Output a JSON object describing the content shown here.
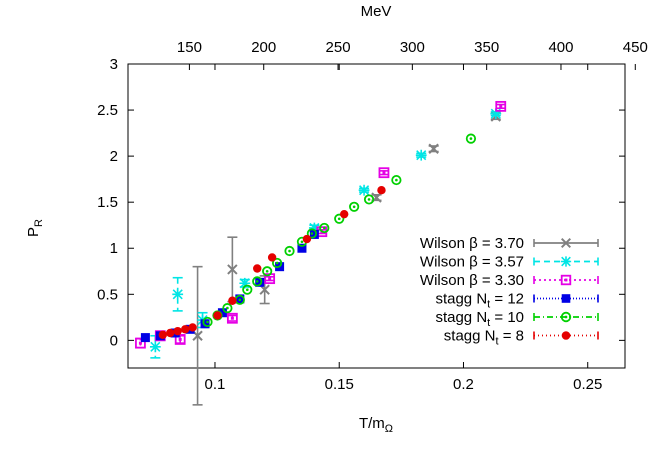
{
  "chart_data": {
    "type": "scatter",
    "xlabel": "T/m",
    "xlabel_sub": "Ω",
    "ylabel": "P",
    "ylabel_sub": "R",
    "top_axis_label": "MeV",
    "xlim": [
      0.065,
      0.265
    ],
    "ylim": [
      -0.3,
      3.0
    ],
    "mev_per_unit": 1672,
    "x_ticks": [
      0.1,
      0.15,
      0.2,
      0.25
    ],
    "x_tick_labels": [
      "0.1",
      "0.15",
      "0.2",
      "0.25"
    ],
    "y_ticks": [
      0,
      0.5,
      1,
      1.5,
      2,
      2.5,
      3
    ],
    "y_tick_labels": [
      "0",
      "0.5",
      "1",
      "1.5",
      "2",
      "2.5",
      "3"
    ],
    "top_ticks": [
      150,
      200,
      250,
      300,
      350,
      400,
      450
    ],
    "top_tick_labels": [
      "150",
      "200",
      "250",
      "300",
      "350",
      "400",
      "450"
    ],
    "legend_position": "bottom-right",
    "series": [
      {
        "name": "Wilson β = 3.70",
        "color": "#808080",
        "marker": "x",
        "dash": "",
        "points": [
          {
            "x": 0.093,
            "y": 0.05,
            "err": 0.75
          },
          {
            "x": 0.107,
            "y": 0.77,
            "err": 0.35
          },
          {
            "x": 0.12,
            "y": 0.55,
            "err": 0.15
          },
          {
            "x": 0.165,
            "y": 1.55,
            "err": 0.03
          },
          {
            "x": 0.188,
            "y": 2.08,
            "err": 0.03
          },
          {
            "x": 0.213,
            "y": 2.43,
            "err": 0.03
          }
        ]
      },
      {
        "name": "Wilson β = 3.57",
        "color": "#00e5e5",
        "marker": "star",
        "dash": "6,4",
        "points": [
          {
            "x": 0.076,
            "y": -0.07,
            "err": 0.12
          },
          {
            "x": 0.085,
            "y": 0.5,
            "err": 0.18
          },
          {
            "x": 0.095,
            "y": 0.22,
            "err": 0.08
          },
          {
            "x": 0.112,
            "y": 0.62,
            "err": 0.04
          },
          {
            "x": 0.14,
            "y": 1.22,
            "err": 0.03
          },
          {
            "x": 0.16,
            "y": 1.63,
            "err": 0.02
          },
          {
            "x": 0.183,
            "y": 2.01,
            "err": 0.02
          },
          {
            "x": 0.213,
            "y": 2.46,
            "err": 0.02
          }
        ]
      },
      {
        "name": "Wilson β = 3.30",
        "color": "#e500e5",
        "marker": "open-square",
        "dash": "2,3",
        "points": [
          {
            "x": 0.07,
            "y": -0.03,
            "err": 0.05
          },
          {
            "x": 0.078,
            "y": 0.05,
            "err": 0.05
          },
          {
            "x": 0.086,
            "y": 0.01,
            "err": 0.04
          },
          {
            "x": 0.107,
            "y": 0.24,
            "err": 0.03
          },
          {
            "x": 0.122,
            "y": 0.67,
            "err": 0.02
          },
          {
            "x": 0.143,
            "y": 1.18,
            "err": 0.02
          },
          {
            "x": 0.168,
            "y": 1.82,
            "err": 0.02
          },
          {
            "x": 0.215,
            "y": 2.54,
            "err": 0.02
          }
        ]
      },
      {
        "name": "stagg N",
        "name_sub": "t",
        "name_suffix": " = 12",
        "color": "#0000e5",
        "marker": "filled-square",
        "dash": "1,2",
        "points": [
          {
            "x": 0.072,
            "y": 0.03
          },
          {
            "x": 0.078,
            "y": 0.05
          },
          {
            "x": 0.084,
            "y": 0.08
          },
          {
            "x": 0.09,
            "y": 0.12
          },
          {
            "x": 0.096,
            "y": 0.18
          },
          {
            "x": 0.103,
            "y": 0.3
          },
          {
            "x": 0.11,
            "y": 0.45
          },
          {
            "x": 0.118,
            "y": 0.63
          },
          {
            "x": 0.126,
            "y": 0.8
          },
          {
            "x": 0.135,
            "y": 1.0
          },
          {
            "x": 0.14,
            "y": 1.15
          }
        ]
      },
      {
        "name": "stagg N",
        "name_sub": "t",
        "name_suffix": " = 10",
        "color": "#00d000",
        "marker": "open-circle",
        "dash": "6,3,1,3",
        "points": [
          {
            "x": 0.097,
            "y": 0.2
          },
          {
            "x": 0.101,
            "y": 0.27
          },
          {
            "x": 0.105,
            "y": 0.35
          },
          {
            "x": 0.11,
            "y": 0.44
          },
          {
            "x": 0.113,
            "y": 0.55
          },
          {
            "x": 0.117,
            "y": 0.64
          },
          {
            "x": 0.121,
            "y": 0.75
          },
          {
            "x": 0.125,
            "y": 0.84
          },
          {
            "x": 0.13,
            "y": 0.97
          },
          {
            "x": 0.135,
            "y": 1.07
          },
          {
            "x": 0.139,
            "y": 1.16
          },
          {
            "x": 0.144,
            "y": 1.22
          },
          {
            "x": 0.15,
            "y": 1.32
          },
          {
            "x": 0.156,
            "y": 1.45
          },
          {
            "x": 0.162,
            "y": 1.53
          },
          {
            "x": 0.173,
            "y": 1.74
          },
          {
            "x": 0.203,
            "y": 2.19
          }
        ]
      },
      {
        "name": "stagg N",
        "name_sub": "t",
        "name_suffix": " = 8",
        "color": "#e50000",
        "marker": "filled-circle",
        "dash": "1,3",
        "points": [
          {
            "x": 0.079,
            "y": 0.06
          },
          {
            "x": 0.082,
            "y": 0.08
          },
          {
            "x": 0.085,
            "y": 0.1
          },
          {
            "x": 0.088,
            "y": 0.12
          },
          {
            "x": 0.091,
            "y": 0.14
          },
          {
            "x": 0.101,
            "y": 0.27
          },
          {
            "x": 0.107,
            "y": 0.43
          },
          {
            "x": 0.117,
            "y": 0.78
          },
          {
            "x": 0.123,
            "y": 0.9
          },
          {
            "x": 0.137,
            "y": 1.1
          },
          {
            "x": 0.152,
            "y": 1.37
          },
          {
            "x": 0.167,
            "y": 1.63
          }
        ]
      }
    ]
  }
}
